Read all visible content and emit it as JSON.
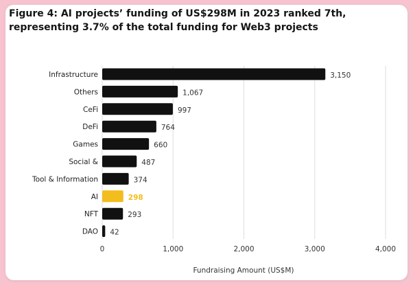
{
  "figure": {
    "title": "Figure 4: AI projects’ funding of US$298M in 2023 ranked 7th, representing 3.7% of the total funding for Web3 projects"
  },
  "colors": {
    "page_background": "#f7c3cf",
    "card": "#ffffff",
    "bar_default": "#111111",
    "bar_highlight": "#f2bd1d",
    "highlight_label": "#f2bd1d",
    "gridline": "#dddddd"
  },
  "chart_data": {
    "type": "bar",
    "orientation": "horizontal",
    "categories": [
      "Infrastructure",
      "Others",
      "CeFi",
      "DeFi",
      "Games",
      "Social &",
      "Tool & Information",
      "AI",
      "NFT",
      "DAO"
    ],
    "values": [
      3150,
      1067,
      997,
      764,
      660,
      487,
      374,
      298,
      293,
      42
    ],
    "value_labels": [
      "3,150",
      "1,067",
      "997",
      "764",
      "660",
      "487",
      "374",
      "298",
      "293",
      "42"
    ],
    "highlight_category": "AI",
    "xlabel": "Fundraising Amount (US$M)",
    "xlim": [
      0,
      4000
    ],
    "xticks": [
      0,
      1000,
      2000,
      3000,
      4000
    ],
    "xtick_labels": [
      "0",
      "1,000",
      "2,000",
      "3,000",
      "4,000"
    ],
    "grid": "vertical"
  }
}
